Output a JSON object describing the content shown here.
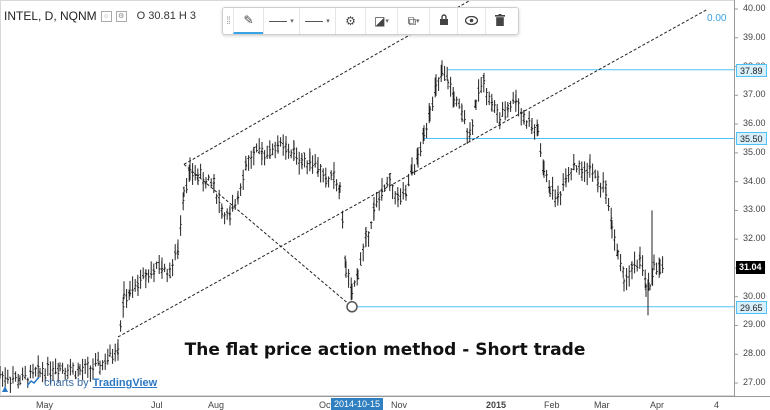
{
  "legend": {
    "symbol": "INTEL, D, NQNM",
    "value_text": "O 30.81 H 3"
  },
  "toolbar": {
    "buttons": [
      {
        "icon": "pencil-icon",
        "glyph": "✎"
      },
      {
        "icon": "line-color-icon",
        "glyph": ""
      },
      {
        "icon": "line-style-icon",
        "glyph": ""
      },
      {
        "icon": "gear-icon",
        "glyph": "⚙"
      },
      {
        "icon": "bring-front-icon",
        "glyph": "◪"
      },
      {
        "icon": "clone-icon",
        "glyph": "⧉"
      },
      {
        "icon": "lock-icon",
        "glyph": "🔒"
      },
      {
        "icon": "eye-icon",
        "glyph": "◉"
      },
      {
        "icon": "trash-icon",
        "glyph": "🗑"
      }
    ]
  },
  "zero_label": "0.00",
  "caption": "The flat price action method - Short trade",
  "credit": {
    "prefix": "charts by",
    "brand": "TradingView"
  },
  "colors": {
    "bar": "#222222",
    "hline": "#4fc3f7",
    "axis_text": "#444444",
    "accent": "#2f7fc1"
  },
  "chart_data": {
    "type": "ohlc",
    "title": "INTEL, D, NQNM",
    "y_axis_ticks": [
      "40.00",
      "39.00",
      "38.00",
      "37.00",
      "36.00",
      "35.00",
      "34.00",
      "33.00",
      "32.00",
      "31.00",
      "30.00",
      "29.00",
      "28.00",
      "27.00"
    ],
    "ylim": [
      26.6,
      40.2
    ],
    "x_axis_labels": [
      "May",
      "Jul",
      "Aug",
      "Oct",
      "Nov",
      "2015",
      "Feb",
      "Mar",
      "Apr",
      "4"
    ],
    "x_highlight_label": "2014-10-15",
    "price_tags": [
      {
        "value": "37.89",
        "style": "line"
      },
      {
        "value": "35.50",
        "style": "line"
      },
      {
        "value": "31.04",
        "style": "last"
      },
      {
        "value": "29.65",
        "style": "line"
      }
    ],
    "horizontal_levels": [
      37.89,
      35.5,
      29.65
    ],
    "price_path": [
      [
        0,
        27.3
      ],
      [
        20,
        27.1
      ],
      [
        40,
        27.4
      ],
      [
        60,
        27.6
      ],
      [
        80,
        27.4
      ],
      [
        100,
        27.6
      ],
      [
        110,
        27.9
      ],
      [
        118,
        28.3
      ],
      [
        124,
        30.0
      ],
      [
        130,
        30.1
      ],
      [
        138,
        30.4
      ],
      [
        146,
        30.8
      ],
      [
        154,
        30.9
      ],
      [
        162,
        31.0
      ],
      [
        170,
        30.9
      ],
      [
        178,
        31.6
      ],
      [
        184,
        33.8
      ],
      [
        190,
        34.3
      ],
      [
        198,
        34.2
      ],
      [
        206,
        34.0
      ],
      [
        214,
        33.9
      ],
      [
        222,
        33.0
      ],
      [
        230,
        32.7
      ],
      [
        238,
        33.6
      ],
      [
        246,
        34.6
      ],
      [
        254,
        34.9
      ],
      [
        262,
        35.1
      ],
      [
        270,
        35.0
      ],
      [
        278,
        35.3
      ],
      [
        286,
        35.1
      ],
      [
        294,
        35.0
      ],
      [
        302,
        34.7
      ],
      [
        310,
        34.8
      ],
      [
        318,
        34.5
      ],
      [
        326,
        34.0
      ],
      [
        334,
        34.2
      ],
      [
        340,
        33.6
      ],
      [
        346,
        31.0
      ],
      [
        352,
        30.0
      ],
      [
        358,
        30.9
      ],
      [
        366,
        32.0
      ],
      [
        374,
        33.0
      ],
      [
        382,
        33.6
      ],
      [
        390,
        34.0
      ],
      [
        398,
        33.4
      ],
      [
        406,
        33.5
      ],
      [
        412,
        34.4
      ],
      [
        418,
        34.8
      ],
      [
        424,
        35.6
      ],
      [
        430,
        36.6
      ],
      [
        436,
        37.2
      ],
      [
        442,
        37.7
      ],
      [
        448,
        37.5
      ],
      [
        454,
        36.9
      ],
      [
        462,
        36.3
      ],
      [
        470,
        35.7
      ],
      [
        476,
        36.8
      ],
      [
        484,
        37.5
      ],
      [
        492,
        36.7
      ],
      [
        500,
        36.1
      ],
      [
        508,
        36.6
      ],
      [
        516,
        36.9
      ],
      [
        524,
        36.2
      ],
      [
        532,
        35.9
      ],
      [
        538,
        35.7
      ],
      [
        544,
        34.3
      ],
      [
        550,
        33.8
      ],
      [
        558,
        33.4
      ],
      [
        566,
        34.2
      ],
      [
        574,
        34.6
      ],
      [
        582,
        34.3
      ],
      [
        590,
        34.5
      ],
      [
        598,
        34.0
      ],
      [
        606,
        33.7
      ],
      [
        612,
        32.5
      ],
      [
        618,
        31.4
      ],
      [
        624,
        30.6
      ],
      [
        632,
        30.9
      ],
      [
        640,
        31.3
      ],
      [
        646,
        30.4
      ],
      [
        650,
        30.2
      ],
      [
        654,
        31.2
      ],
      [
        660,
        30.9
      ],
      [
        664,
        31.0
      ]
    ],
    "trend_channel": {
      "lower": {
        "from": [
          118,
          28.6
        ],
        "to": [
          708,
          40.0
        ]
      },
      "upper": {
        "from": [
          184,
          34.6
        ],
        "to": [
          470,
          40.3
        ]
      },
      "pivot": {
        "x": 352,
        "y": 29.65
      },
      "cross_line": {
        "from": [
          184,
          34.6
        ],
        "to": [
          352,
          29.65
        ]
      }
    }
  }
}
